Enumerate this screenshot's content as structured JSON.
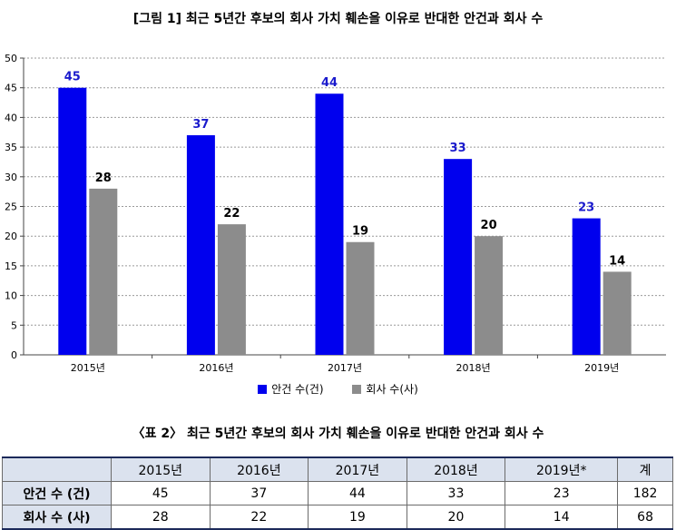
{
  "chart_data": {
    "type": "bar",
    "title": "[그림 1] 최근 5년간 후보의 회사 가치 훼손을 이유로 반대한 안건과 회사 수",
    "categories": [
      "2015년",
      "2016년",
      "2017년",
      "2018년",
      "2019년"
    ],
    "series": [
      {
        "name": "안건 수(건)",
        "values": [
          45,
          37,
          44,
          33,
          23
        ],
        "color": "#0000ee",
        "label_color": "#1a1acc"
      },
      {
        "name": "회사 수(사)",
        "values": [
          28,
          22,
          19,
          20,
          14
        ],
        "color": "#8c8c8c",
        "label_color": "#000000"
      }
    ],
    "ylim": [
      0,
      50
    ],
    "yticks": [
      0,
      5,
      10,
      15,
      20,
      25,
      30,
      35,
      40,
      45,
      50
    ],
    "grid": true,
    "legend": "bottom"
  },
  "table": {
    "title": "〈표 2〉 최근 5년간 후보의 회사 가치 훼손을 이유로 반대한 안건과 회사 수",
    "columns": [
      "2015년",
      "2016년",
      "2017년",
      "2018년",
      "2019년*",
      "계"
    ],
    "rows": [
      {
        "label": "안건 수 (건)",
        "cells": [
          "45",
          "37",
          "44",
          "33",
          "23",
          "182"
        ]
      },
      {
        "label": "회사 수 (사)",
        "cells": [
          "28",
          "22",
          "19",
          "20",
          "14",
          "68"
        ]
      }
    ]
  }
}
